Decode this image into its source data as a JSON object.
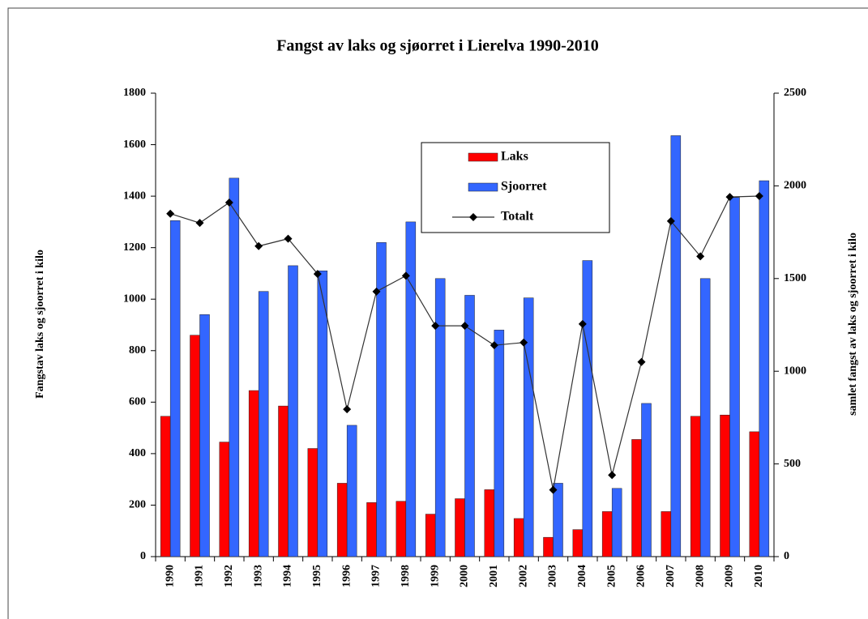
{
  "chart_data": {
    "type": "bar",
    "title": "Fangst av laks og sjøorret i Lierelva 1990-2010",
    "y_label": "Fangstav laks og sjoorret i kilo",
    "y2_label": "samlet fangst  av laks  og sjoorret i kilo",
    "categories": [
      "1990",
      "1991",
      "1992",
      "1993",
      "1994",
      "1995",
      "1996",
      "1997",
      "1998",
      "1999",
      "2000",
      "2001",
      "2002",
      "2003",
      "2004",
      "2005",
      "2006",
      "2007",
      "2008",
      "2009",
      "2010"
    ],
    "series": [
      {
        "name": "Laks",
        "color": "#ff0000",
        "values": [
          545,
          860,
          445,
          645,
          585,
          420,
          285,
          210,
          215,
          165,
          225,
          260,
          148,
          75,
          105,
          175,
          455,
          175,
          545,
          550,
          485
        ]
      },
      {
        "name": "Sjoorret",
        "color": "#3366ff",
        "values": [
          1305,
          940,
          1470,
          1030,
          1130,
          1110,
          510,
          1220,
          1300,
          1080,
          1015,
          880,
          1005,
          285,
          1150,
          265,
          595,
          1635,
          1080,
          1395,
          1460
        ]
      },
      {
        "name": "Totalt",
        "color": "#000000",
        "type": "line",
        "axis": "y2",
        "values": [
          1850,
          1800,
          1910,
          1675,
          1715,
          1525,
          795,
          1430,
          1515,
          1245,
          1245,
          1140,
          1155,
          360,
          1255,
          440,
          1050,
          1810,
          1620,
          1940,
          1945
        ]
      }
    ],
    "ylim": [
      0,
      1800
    ],
    "yticks": [
      0,
      200,
      400,
      600,
      800,
      1000,
      1200,
      1400,
      1600,
      1800
    ],
    "y2lim": [
      0,
      2500
    ],
    "y2ticks": [
      0,
      500,
      1000,
      1500,
      2000,
      2500
    ],
    "grid": false,
    "legend": "upper center"
  }
}
